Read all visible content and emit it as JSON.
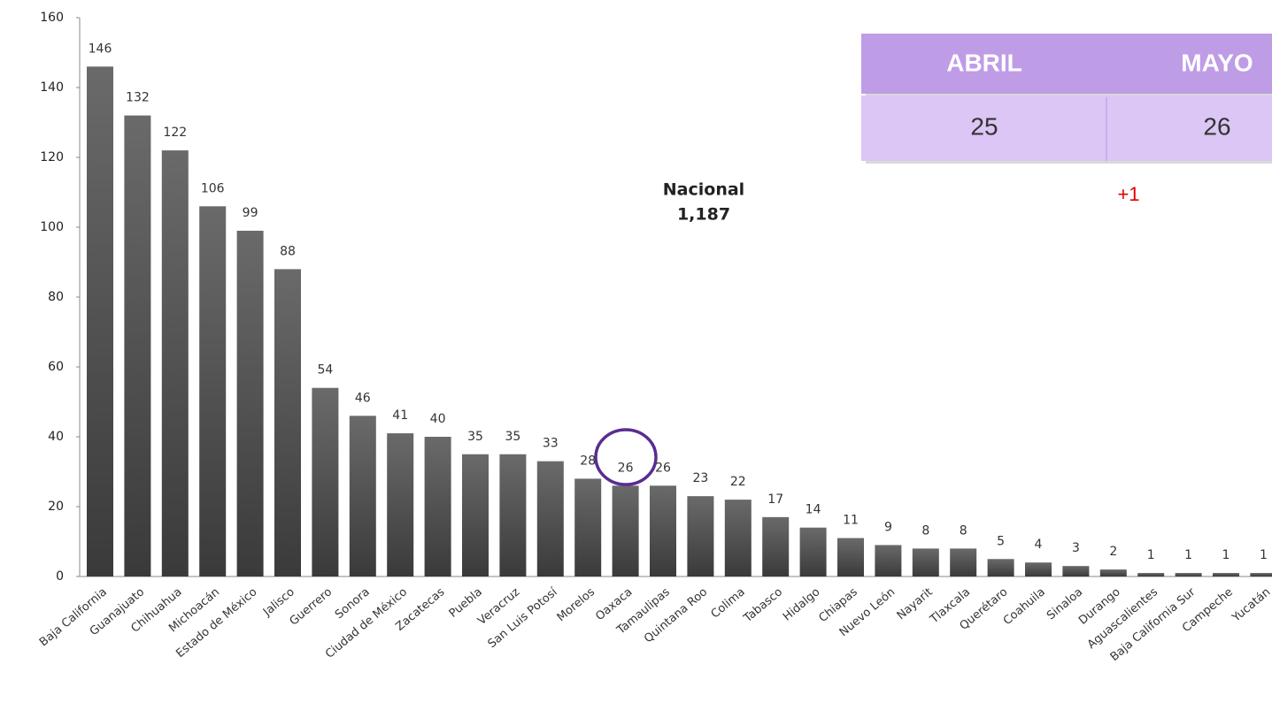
{
  "chart_data": {
    "type": "bar",
    "categories": [
      "Baja California",
      "Guanajuato",
      "Chihuahua",
      "Michoacán",
      "Estado de México",
      "Jalisco",
      "Guerrero",
      "Sonora",
      "Ciudad de México",
      "Zacatecas",
      "Puebla",
      "Veracruz",
      "San Luis Potosí",
      "Morelos",
      "Oaxaca",
      "Tamaulipas",
      "Quintana Roo",
      "Colima",
      "Tabasco",
      "Hidalgo",
      "Chiapas",
      "Nuevo León",
      "Nayarit",
      "Tlaxcala",
      "Querétaro",
      "Coahuila",
      "Sinaloa",
      "Durango",
      "Aguascalientes",
      "Baja California Sur",
      "Campeche",
      "Yucatán"
    ],
    "values": [
      146,
      132,
      122,
      106,
      99,
      88,
      54,
      46,
      41,
      40,
      35,
      35,
      33,
      28,
      26,
      26,
      23,
      22,
      17,
      14,
      11,
      9,
      8,
      8,
      5,
      4,
      3,
      2,
      1,
      1,
      1,
      1
    ],
    "color": "#4d4d4d",
    "ylim": [
      0,
      160
    ],
    "yticks": [
      0,
      20,
      40,
      60,
      80,
      100,
      120,
      140,
      160
    ],
    "annotation": {
      "label": "Nacional",
      "total": "1,187"
    },
    "table": {
      "headers": [
        "ABRIL",
        "MAYO"
      ],
      "values": [
        "25",
        "26"
      ],
      "change": "+1"
    }
  }
}
